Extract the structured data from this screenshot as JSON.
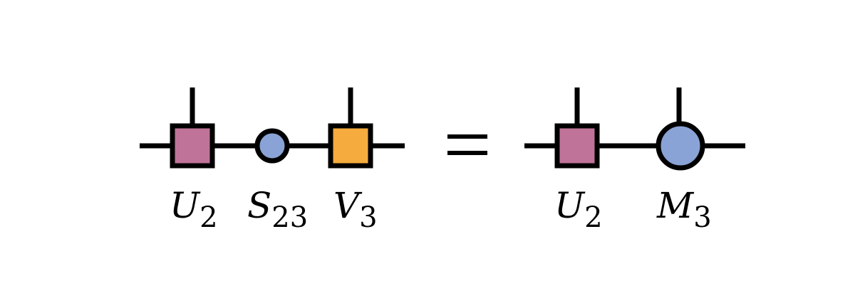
{
  "colors": {
    "line": "#000000",
    "u_node": "#c07399",
    "s_node": "#8aa3d6",
    "v_node": "#f5ab3d",
    "m_node": "#8aa3d6",
    "background": "#ffffff"
  },
  "equation": {
    "operator": "=",
    "left_labels": {
      "u": {
        "main": "U",
        "sub": "2"
      },
      "s": {
        "main": "S",
        "sub": "23"
      },
      "v": {
        "main": "V",
        "sub": "3"
      }
    },
    "right_labels": {
      "u": {
        "main": "U",
        "sub": "2"
      },
      "m": {
        "main": "M",
        "sub": "3"
      }
    }
  }
}
